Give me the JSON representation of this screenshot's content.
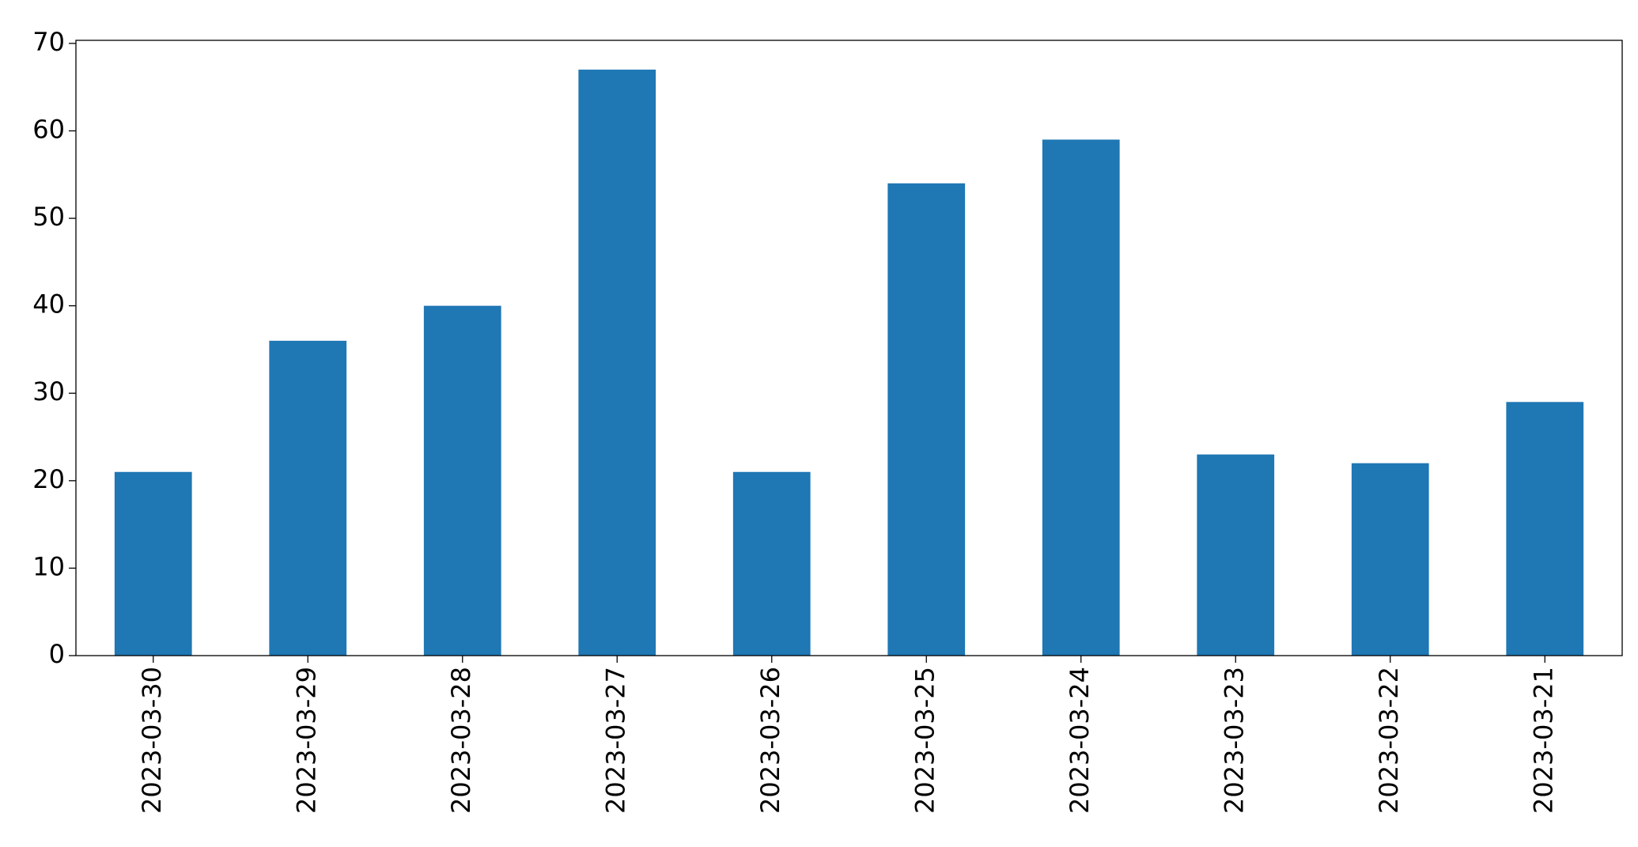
{
  "chart_data": {
    "type": "bar",
    "categories": [
      "2023-03-30",
      "2023-03-29",
      "2023-03-28",
      "2023-03-27",
      "2023-03-26",
      "2023-03-25",
      "2023-03-24",
      "2023-03-23",
      "2023-03-22",
      "2023-03-21"
    ],
    "values": [
      21,
      36,
      40,
      67,
      21,
      54,
      59,
      23,
      22,
      29
    ],
    "color": "#1f77b4",
    "ylim": [
      0,
      70.35
    ],
    "yticks": [
      0,
      10,
      20,
      30,
      40,
      50,
      60,
      70
    ],
    "grid": false
  }
}
